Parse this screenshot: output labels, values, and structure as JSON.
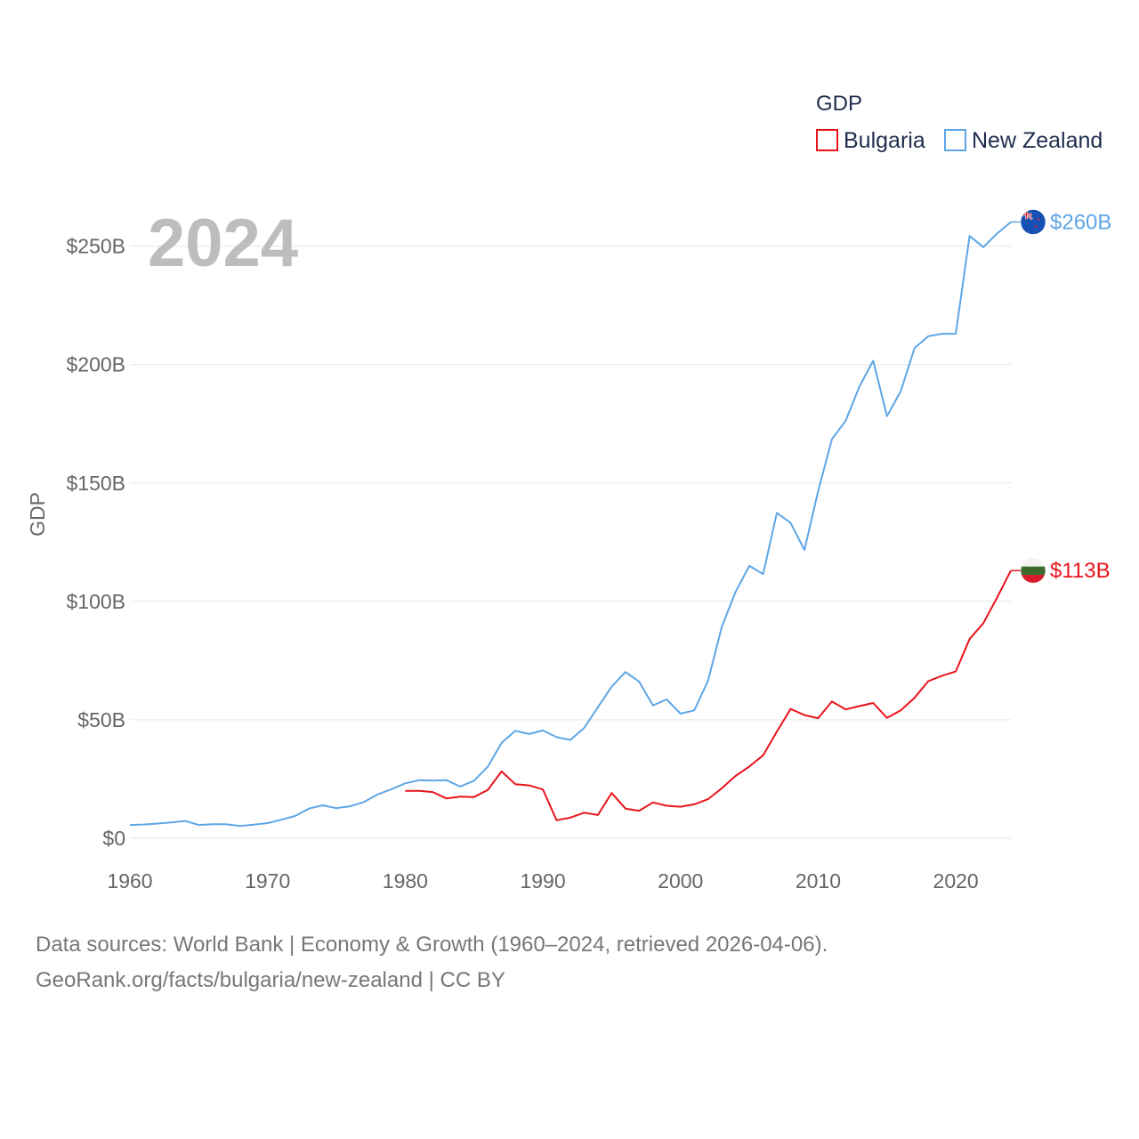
{
  "chart_data": {
    "type": "line",
    "year_label": "2024",
    "ylabel": "GDP",
    "xlabel": "",
    "xlim": [
      1960,
      2024
    ],
    "ylim": [
      0,
      260
    ],
    "x_ticks": [
      1960,
      1970,
      1980,
      1990,
      2000,
      2010,
      2020
    ],
    "x_tick_labels": [
      "1960",
      "1970",
      "1980",
      "1990",
      "2000",
      "2010",
      "2020"
    ],
    "y_ticks": [
      0,
      50,
      100,
      150,
      200,
      250
    ],
    "y_tick_labels": [
      "$0",
      "$50B",
      "$100B",
      "$150B",
      "$200B",
      "$250B"
    ],
    "legend": {
      "title": "GDP",
      "position": "top-right"
    },
    "series": [
      {
        "name": "Bulgaria",
        "color": "#e8141b",
        "end_label": "$113B",
        "flag_icon": "bulgaria-flag-icon",
        "x": [
          1980,
          1981,
          1982,
          1983,
          1984,
          1985,
          1986,
          1987,
          1988,
          1989,
          1990,
          1991,
          1992,
          1993,
          1994,
          1995,
          1996,
          1997,
          1998,
          1999,
          2000,
          2001,
          2002,
          2003,
          2004,
          2005,
          2006,
          2007,
          2008,
          2009,
          2010,
          2011,
          2012,
          2013,
          2014,
          2015,
          2016,
          2017,
          2018,
          2019,
          2020,
          2021,
          2022,
          2023,
          2024
        ],
        "values": [
          20.0,
          20.0,
          19.5,
          16.8,
          17.6,
          17.4,
          20.4,
          28.2,
          22.8,
          22.3,
          20.6,
          7.6,
          8.7,
          10.8,
          9.8,
          19.1,
          12.5,
          11.6,
          15.1,
          13.7,
          13.3,
          14.3,
          16.5,
          21.1,
          26.3,
          30.3,
          35.0,
          45.0,
          54.6,
          52.0,
          50.7,
          57.7,
          54.4,
          55.8,
          57.1,
          50.8,
          54.0,
          59.3,
          66.3,
          68.6,
          70.4,
          84.1,
          90.8,
          101.6,
          113.0
        ]
      },
      {
        "name": "New Zealand",
        "color": "#5ea6e5",
        "end_label": "$260B",
        "flag_icon": "new-zealand-flag-icon",
        "x": [
          1960,
          1961,
          1962,
          1963,
          1964,
          1965,
          1966,
          1967,
          1968,
          1969,
          1970,
          1971,
          1972,
          1973,
          1974,
          1975,
          1976,
          1977,
          1978,
          1979,
          1980,
          1981,
          1982,
          1983,
          1984,
          1985,
          1986,
          1987,
          1988,
          1989,
          1990,
          1991,
          1992,
          1993,
          1994,
          1995,
          1996,
          1997,
          1998,
          1999,
          2000,
          2001,
          2002,
          2003,
          2004,
          2005,
          2006,
          2007,
          2008,
          2009,
          2010,
          2011,
          2012,
          2013,
          2014,
          2015,
          2016,
          2017,
          2018,
          2019,
          2020,
          2021,
          2022,
          2023,
          2024
        ],
        "values": [
          5.6,
          5.8,
          6.2,
          6.7,
          7.3,
          5.6,
          5.9,
          5.9,
          5.2,
          5.7,
          6.4,
          7.8,
          9.4,
          12.5,
          13.9,
          12.7,
          13.5,
          15.3,
          18.5,
          20.7,
          23.2,
          24.5,
          24.3,
          24.5,
          21.8,
          24.3,
          30.2,
          40.3,
          45.4,
          44.0,
          45.5,
          42.7,
          41.5,
          46.6,
          55.3,
          64.0,
          70.2,
          66.1,
          56.1,
          58.6,
          52.6,
          54.0,
          66.5,
          89.3,
          104.0,
          115.0,
          111.5,
          137.4,
          133.1,
          121.7,
          146.5,
          168.5,
          176.3,
          190.7,
          201.6,
          178.2,
          188.8,
          206.9,
          212.0,
          213.0,
          213.0,
          254.3,
          249.6,
          255.3,
          260.2
        ]
      }
    ]
  },
  "footer": {
    "line1": "Data sources: World Bank | Economy & Growth (1960–2024, retrieved 2026-04-06).",
    "line2": "GeoRank.org/facts/bulgaria/new-zealand | CC BY"
  }
}
